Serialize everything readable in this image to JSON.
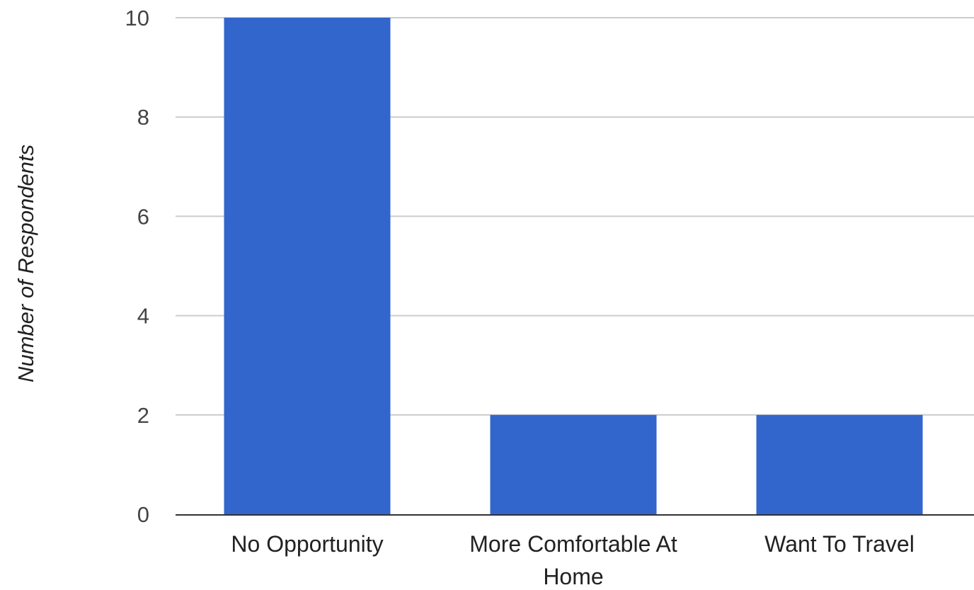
{
  "chart_data": {
    "type": "bar",
    "title": "",
    "xlabel": "",
    "ylabel": "Number of Respondents",
    "categories": [
      "No Opportunity",
      "More Comfortable At Home",
      "Want To Travel"
    ],
    "category_lines": [
      [
        "No Opportunity"
      ],
      [
        "More Comfortable At",
        "Home"
      ],
      [
        "Want To Travel"
      ]
    ],
    "values": [
      10,
      2,
      2
    ],
    "ylim": [
      0,
      10
    ],
    "yticks": [
      0,
      2,
      4,
      6,
      8,
      10
    ],
    "grid": true,
    "legend": "none",
    "bar_color": "#3366cc",
    "grid_color": "#cccccc",
    "baseline_color": "#333333"
  }
}
